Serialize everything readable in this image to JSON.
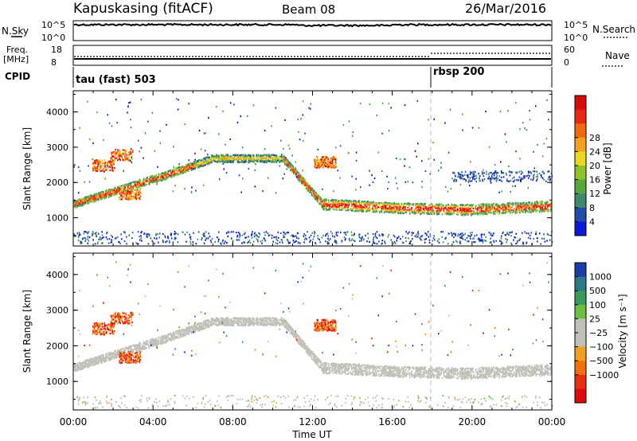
{
  "header": {
    "station": "Kapuskasing (fitACF)",
    "beam": "Beam 08",
    "date": "26/Mar/2016"
  },
  "top_panels": {
    "nsky_label": "N.Sky",
    "nsky_ticks": [
      "10^5",
      "10^0"
    ],
    "nsearch_label": "N.Search",
    "nsearch_ticks": [
      "10^5",
      "10^0"
    ],
    "freq_label": "Freq.",
    "freq_unit": "[MHz]",
    "freq_ticks": [
      "18",
      "8"
    ],
    "nave_label": "Nave",
    "nave_ticks": [
      "60",
      "0"
    ],
    "cpid_label": "CPID",
    "cpid_modes": [
      {
        "label": "tau (fast) 503",
        "start": 0
      },
      {
        "label": "rbsp 200",
        "start": 18
      }
    ]
  },
  "chart_data": [
    {
      "type": "heatmap",
      "name": "power",
      "ylabel": "Slant Range [km]",
      "xlabel": "",
      "x_range": [
        0,
        24
      ],
      "x_ticks": [
        "00:00",
        "04:00",
        "08:00",
        "12:00",
        "16:00",
        "20:00",
        "00:00"
      ],
      "y_range": [
        200,
        4600
      ],
      "y_ticks": [
        1000,
        2000,
        3000,
        4000
      ],
      "colorbar_label": "Power [dB]",
      "colorbar_ticks": [
        "4",
        "8",
        "12",
        "16",
        "20",
        "24",
        "28"
      ],
      "colorbar_colors": [
        "#0b18d8",
        "#1f4fa8",
        "#3f8a6c",
        "#56a83c",
        "#8fc428",
        "#e8d820",
        "#f4a020",
        "#f26a10",
        "#e82810",
        "#d80a0a"
      ],
      "features": [
        {
          "region": "main echo band",
          "time_start": 0,
          "time_end": 24,
          "range_km": "1300-2800",
          "power_db": "12-28"
        },
        {
          "region": "near range scatter",
          "time_start": 0,
          "time_end": 24,
          "range_km": "250-700",
          "power_db": "4-12"
        }
      ]
    },
    {
      "type": "heatmap",
      "name": "velocity",
      "ylabel": "Slant Range [km]",
      "xlabel": "Time UT",
      "x_range": [
        0,
        24
      ],
      "x_ticks": [
        "00:00",
        "04:00",
        "08:00",
        "12:00",
        "16:00",
        "20:00",
        "00:00"
      ],
      "y_range": [
        200,
        4600
      ],
      "y_ticks": [
        1000,
        2000,
        3000,
        4000
      ],
      "colorbar_label": "Velocity [m s⁻¹]",
      "colorbar_ticks": [
        "1000",
        "500",
        "100",
        "25",
        "−25",
        "−100",
        "−500",
        "−1000"
      ],
      "colorbar_colors": [
        "#1a3ca8",
        "#2a7a8a",
        "#3a9a5a",
        "#6ac040",
        "#c0c0b8",
        "#c0c0b8",
        "#f0a020",
        "#f07010",
        "#e83010",
        "#e00a0a"
      ],
      "features": [
        {
          "region": "ground scatter",
          "time_start": 0,
          "time_end": 24,
          "range_km": "1200-2800",
          "velocity": "-25 to 25"
        },
        {
          "region": "ionospheric echoes",
          "time_start": 0.5,
          "time_end": 4,
          "range_km": "1200-2800",
          "velocity": "-500 to -100"
        }
      ]
    }
  ]
}
